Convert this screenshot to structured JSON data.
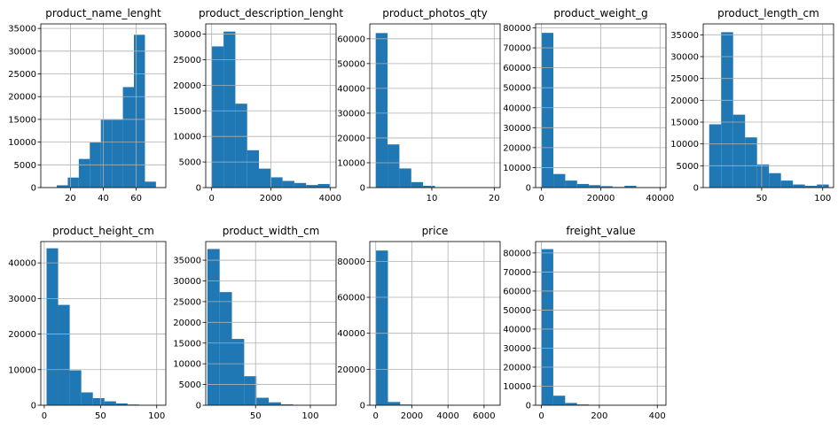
{
  "figure": {
    "background": "#ffffff",
    "bar_color": "#1f77b4",
    "grid_color": "#b0b0b0",
    "grid": true
  },
  "chart_data": [
    {
      "type": "bar",
      "title": "product_name_lenght",
      "xlim": [
        2,
        78
      ],
      "ylim": [
        0,
        36000
      ],
      "xticks": [
        20,
        40,
        60
      ],
      "yticks": [
        0,
        5000,
        10000,
        15000,
        20000,
        25000,
        30000,
        35000
      ],
      "bins": [
        {
          "x0": 5,
          "x1": 11.7,
          "y": 0
        },
        {
          "x0": 11.7,
          "x1": 18.4,
          "y": 500
        },
        {
          "x0": 18.4,
          "x1": 25.1,
          "y": 2200
        },
        {
          "x0": 25.1,
          "x1": 31.8,
          "y": 6300
        },
        {
          "x0": 31.8,
          "x1": 38.5,
          "y": 9900
        },
        {
          "x0": 38.5,
          "x1": 45.2,
          "y": 14900
        },
        {
          "x0": 45.2,
          "x1": 51.9,
          "y": 14900
        },
        {
          "x0": 51.9,
          "x1": 58.6,
          "y": 22100
        },
        {
          "x0": 58.6,
          "x1": 65.3,
          "y": 33600
        },
        {
          "x0": 65.3,
          "x1": 72,
          "y": 1300
        }
      ]
    },
    {
      "type": "bar",
      "title": "product_description_lenght",
      "xlim": [
        -200,
        4200
      ],
      "ylim": [
        0,
        32000
      ],
      "xticks": [
        0,
        2000,
        4000
      ],
      "yticks": [
        0,
        5000,
        10000,
        15000,
        20000,
        25000,
        30000
      ],
      "bins": [
        {
          "x0": 4,
          "x1": 402,
          "y": 27600
        },
        {
          "x0": 402,
          "x1": 800,
          "y": 30500
        },
        {
          "x0": 800,
          "x1": 1198,
          "y": 16400
        },
        {
          "x0": 1198,
          "x1": 1596,
          "y": 7300
        },
        {
          "x0": 1596,
          "x1": 1994,
          "y": 3700
        },
        {
          "x0": 1994,
          "x1": 2392,
          "y": 2000
        },
        {
          "x0": 2392,
          "x1": 2790,
          "y": 1300
        },
        {
          "x0": 2790,
          "x1": 3188,
          "y": 900
        },
        {
          "x0": 3188,
          "x1": 3586,
          "y": 500
        },
        {
          "x0": 3586,
          "x1": 3984,
          "y": 700
        }
      ]
    },
    {
      "type": "bar",
      "title": "product_photos_qty",
      "xlim": [
        0.05,
        20.95
      ],
      "ylim": [
        0,
        66000
      ],
      "xticks": [
        10,
        20
      ],
      "yticks": [
        0,
        10000,
        20000,
        30000,
        40000,
        50000,
        60000
      ],
      "bins": [
        {
          "x0": 1,
          "x1": 2.9,
          "y": 62300
        },
        {
          "x0": 2.9,
          "x1": 4.8,
          "y": 17400
        },
        {
          "x0": 4.8,
          "x1": 6.7,
          "y": 7700
        },
        {
          "x0": 6.7,
          "x1": 8.6,
          "y": 2200
        },
        {
          "x0": 8.6,
          "x1": 10.5,
          "y": 700
        },
        {
          "x0": 10.5,
          "x1": 12.4,
          "y": 100
        },
        {
          "x0": 12.4,
          "x1": 14.3,
          "y": 0
        },
        {
          "x0": 14.3,
          "x1": 16.2,
          "y": 0
        },
        {
          "x0": 16.2,
          "x1": 18.1,
          "y": 0
        },
        {
          "x0": 18.1,
          "x1": 20,
          "y": 0
        }
      ]
    },
    {
      "type": "bar",
      "title": "product_weight_g",
      "xlim": [
        -2000,
        42000
      ],
      "ylim": [
        0,
        82000
      ],
      "xticks": [
        0,
        20000,
        40000
      ],
      "yticks": [
        0,
        10000,
        20000,
        30000,
        40000,
        50000,
        60000,
        70000,
        80000
      ],
      "bins": [
        {
          "x0": 0,
          "x1": 4000,
          "y": 77500
        },
        {
          "x0": 4000,
          "x1": 8000,
          "y": 6800
        },
        {
          "x0": 8000,
          "x1": 12000,
          "y": 3500
        },
        {
          "x0": 12000,
          "x1": 16000,
          "y": 1800
        },
        {
          "x0": 16000,
          "x1": 20000,
          "y": 1200
        },
        {
          "x0": 20000,
          "x1": 24000,
          "y": 700
        },
        {
          "x0": 24000,
          "x1": 28000,
          "y": 300
        },
        {
          "x0": 28000,
          "x1": 32000,
          "y": 900
        },
        {
          "x0": 32000,
          "x1": 36000,
          "y": 100
        },
        {
          "x0": 36000,
          "x1": 40000,
          "y": 100
        }
      ]
    },
    {
      "type": "bar",
      "title": "product_length_cm",
      "xlim": [
        2.1,
        108.9
      ],
      "ylim": [
        0,
        37500
      ],
      "xticks": [
        50,
        100
      ],
      "yticks": [
        0,
        5000,
        10000,
        15000,
        20000,
        25000,
        30000,
        35000
      ],
      "bins": [
        {
          "x0": 7,
          "x1": 16.8,
          "y": 14500
        },
        {
          "x0": 16.8,
          "x1": 26.6,
          "y": 35600
        },
        {
          "x0": 26.6,
          "x1": 36.4,
          "y": 16700
        },
        {
          "x0": 36.4,
          "x1": 46.2,
          "y": 11500
        },
        {
          "x0": 46.2,
          "x1": 56,
          "y": 5300
        },
        {
          "x0": 56,
          "x1": 65.8,
          "y": 3300
        },
        {
          "x0": 65.8,
          "x1": 75.6,
          "y": 1600
        },
        {
          "x0": 75.6,
          "x1": 85.4,
          "y": 700
        },
        {
          "x0": 85.4,
          "x1": 95.2,
          "y": 400
        },
        {
          "x0": 95.2,
          "x1": 105,
          "y": 700
        }
      ]
    },
    {
      "type": "bar",
      "title": "product_height_cm",
      "xlim": [
        -3.1,
        108.1
      ],
      "ylim": [
        0,
        46000
      ],
      "xticks": [
        0,
        50,
        100
      ],
      "yticks": [
        0,
        10000,
        20000,
        30000,
        40000
      ],
      "bins": [
        {
          "x0": 2,
          "x1": 12.3,
          "y": 44100
        },
        {
          "x0": 12.3,
          "x1": 22.6,
          "y": 28200
        },
        {
          "x0": 22.6,
          "x1": 32.9,
          "y": 9800
        },
        {
          "x0": 32.9,
          "x1": 43.2,
          "y": 3600
        },
        {
          "x0": 43.2,
          "x1": 53.5,
          "y": 2000
        },
        {
          "x0": 53.5,
          "x1": 63.8,
          "y": 1100
        },
        {
          "x0": 63.8,
          "x1": 74.1,
          "y": 500
        },
        {
          "x0": 74.1,
          "x1": 84.4,
          "y": 200
        },
        {
          "x0": 84.4,
          "x1": 94.7,
          "y": 100
        },
        {
          "x0": 94.7,
          "x1": 105,
          "y": 100
        }
      ]
    },
    {
      "type": "bar",
      "title": "product_width_cm",
      "xlim": [
        4.5,
        123.5
      ],
      "ylim": [
        0,
        39500
      ],
      "xticks": [
        50,
        100
      ],
      "yticks": [
        0,
        5000,
        10000,
        15000,
        20000,
        25000,
        30000,
        35000
      ],
      "bins": [
        {
          "x0": 6,
          "x1": 17.2,
          "y": 37700
        },
        {
          "x0": 17.2,
          "x1": 28.4,
          "y": 27300
        },
        {
          "x0": 28.4,
          "x1": 39.6,
          "y": 16000
        },
        {
          "x0": 39.6,
          "x1": 50.8,
          "y": 7000
        },
        {
          "x0": 50.8,
          "x1": 62,
          "y": 1800
        },
        {
          "x0": 62,
          "x1": 73.2,
          "y": 700
        },
        {
          "x0": 73.2,
          "x1": 84.4,
          "y": 200
        },
        {
          "x0": 84.4,
          "x1": 95.6,
          "y": 100
        },
        {
          "x0": 95.6,
          "x1": 106.8,
          "y": 50
        },
        {
          "x0": 106.8,
          "x1": 118,
          "y": 50
        }
      ]
    },
    {
      "type": "bar",
      "title": "price",
      "xlim": [
        -330,
        6890
      ],
      "ylim": [
        0,
        91000
      ],
      "xticks": [
        0,
        2000,
        4000,
        6000
      ],
      "yticks": [
        0,
        20000,
        40000,
        60000,
        80000
      ],
      "bins": [
        {
          "x0": 0,
          "x1": 676,
          "y": 86000
        },
        {
          "x0": 676,
          "x1": 1352,
          "y": 1800
        },
        {
          "x0": 1352,
          "x1": 2028,
          "y": 400
        },
        {
          "x0": 2028,
          "x1": 2704,
          "y": 100
        },
        {
          "x0": 2704,
          "x1": 3380,
          "y": 50
        },
        {
          "x0": 3380,
          "x1": 4056,
          "y": 0
        },
        {
          "x0": 4056,
          "x1": 4732,
          "y": 0
        },
        {
          "x0": 4732,
          "x1": 5408,
          "y": 0
        },
        {
          "x0": 5408,
          "x1": 6084,
          "y": 0
        },
        {
          "x0": 6084,
          "x1": 6760,
          "y": 0
        }
      ]
    },
    {
      "type": "bar",
      "title": "freight_value",
      "xlim": [
        -20,
        430
      ],
      "ylim": [
        0,
        86000
      ],
      "xticks": [
        0,
        200,
        400
      ],
      "yticks": [
        0,
        10000,
        20000,
        30000,
        40000,
        50000,
        60000,
        70000,
        80000
      ],
      "bins": [
        {
          "x0": 0,
          "x1": 41,
          "y": 82000
        },
        {
          "x0": 41,
          "x1": 82,
          "y": 5000
        },
        {
          "x0": 82,
          "x1": 123,
          "y": 1200
        },
        {
          "x0": 123,
          "x1": 164,
          "y": 400
        },
        {
          "x0": 164,
          "x1": 205,
          "y": 100
        },
        {
          "x0": 205,
          "x1": 246,
          "y": 50
        },
        {
          "x0": 246,
          "x1": 287,
          "y": 20
        },
        {
          "x0": 287,
          "x1": 328,
          "y": 10
        },
        {
          "x0": 328,
          "x1": 369,
          "y": 5
        },
        {
          "x0": 369,
          "x1": 410,
          "y": 5
        }
      ]
    }
  ]
}
